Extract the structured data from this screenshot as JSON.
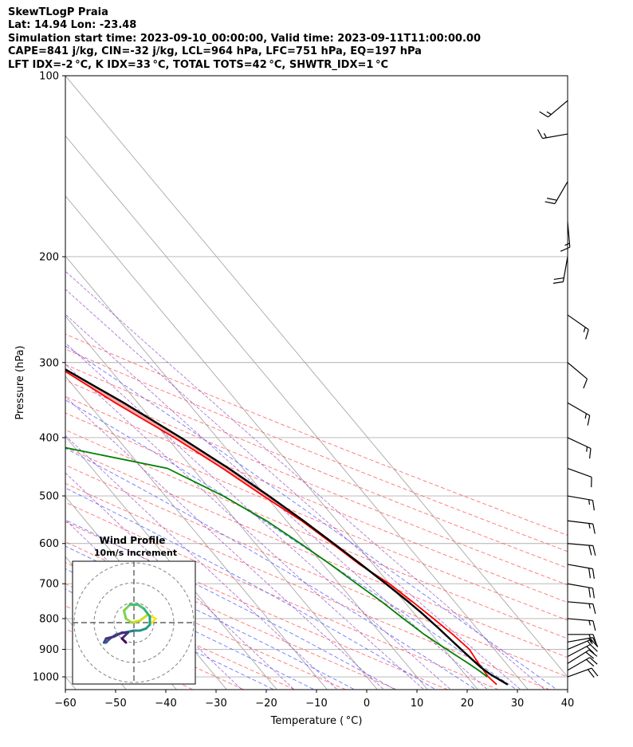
{
  "header": {
    "line1": "SkewTLogP Praia",
    "line2": "Lat: 14.94   Lon: -23.48",
    "line3": "Simulation start time: 2023-09-10_00:00:00, Valid time: 2023-09-11T11:00:00.00",
    "line4": "CAPE=841 j/kg, CIN=-32 j/kg, LCL=964 hPa, LFC=751 hPa, EQ=197 hPa",
    "line5": "LFT IDX=-2 °C, K IDX=33 °C, TOTAL TOTS=42 °C, SHWTR_IDX=1 °C"
  },
  "chart_data": {
    "type": "line",
    "chart_kind": "skew-T log-P",
    "xlabel": "Temperature ( °C)",
    "ylabel": "Pressure (hPa)",
    "xlim": [
      -60,
      40
    ],
    "ylim": [
      1050,
      100
    ],
    "y_scale": "log",
    "x_ticks": [
      -60,
      -50,
      -40,
      -30,
      -20,
      -10,
      0,
      10,
      20,
      30,
      40
    ],
    "y_ticks": [
      100,
      200,
      300,
      400,
      500,
      600,
      700,
      800,
      900,
      1000
    ],
    "skew_deg_per_log10_p": 100,
    "grid": true,
    "series": [
      {
        "key": "temperature",
        "color": "#ff0000",
        "p": [
          1030,
          1000,
          950,
          900,
          850,
          800,
          750,
          700,
          650,
          600,
          550,
          500,
          450,
          400,
          350,
          300,
          270,
          250,
          220,
          200,
          180,
          160,
          140,
          120,
          110,
          100
        ],
        "t": [
          24.6,
          24.2,
          24.5,
          25.0,
          24.2,
          23.0,
          21.6,
          20.0,
          17.3,
          15.3,
          13.0,
          9.5,
          6.0,
          1.5,
          -4.5,
          -10.5,
          -16.0,
          -20.5,
          -28.2,
          -34.0,
          -37.0,
          -44.0,
          -51.3,
          -60.0,
          -64.5,
          -66.0
        ]
      },
      {
        "key": "dewpoint",
        "color": "#008000",
        "p": [
          1000,
          980,
          950,
          900,
          850,
          800,
          750,
          700,
          650,
          600,
          550,
          500,
          450,
          400,
          380,
          340,
          320,
          300,
          280,
          250,
          230,
          210,
          200,
          180,
          160,
          140,
          125,
          110,
          100
        ],
        "t": [
          24.0,
          23.5,
          22.5,
          20.5,
          18.5,
          17.0,
          15.5,
          13.5,
          11.5,
          9.0,
          6.0,
          1.5,
          -5.0,
          -30.0,
          -40.0,
          -41.0,
          -38.0,
          -30.0,
          -35.0,
          -59.0,
          -55.0,
          -51.0,
          -52.0,
          -58.0,
          -56.0,
          -64.5,
          -74.5,
          -76.5,
          -76.5
        ]
      },
      {
        "key": "parcel",
        "color": "#000000",
        "p": [
          1030,
          990,
          964,
          930,
          880,
          830,
          780,
          751,
          700,
          650,
          600,
          550,
          500,
          450,
          400,
          350,
          300,
          270,
          250,
          220,
          197,
          180,
          150,
          120,
          100
        ],
        "t": [
          26.8,
          25.0,
          24.3,
          23.8,
          23.1,
          22.4,
          21.5,
          20.8,
          19.3,
          17.6,
          15.6,
          13.4,
          10.6,
          7.2,
          2.8,
          -2.8,
          -10.1,
          -15.8,
          -20.3,
          -28.0,
          -34.0,
          -39.2,
          -49.8,
          -64.0,
          -76.0
        ]
      }
    ],
    "shading": [
      {
        "name": "CAPE",
        "color": "#f5a7a7",
        "between": [
          "temperature",
          "parcel"
        ],
        "p_range": [
          751,
          197
        ]
      },
      {
        "name": "CIN",
        "color": "#a8c8e0",
        "between": [
          "parcel",
          "temperature"
        ],
        "p_range": [
          197,
          100
        ]
      }
    ],
    "dry_adiabats_theta_c": [
      -40,
      -30,
      -20,
      -10,
      0,
      10,
      20,
      30,
      40,
      50,
      60,
      70,
      80,
      90,
      100,
      110,
      120
    ],
    "moist_adiabats_start_t": [
      -20,
      -12,
      -4,
      4,
      12,
      20,
      28,
      36
    ],
    "mixing_ratio_gkg": [
      0.4,
      1,
      2,
      4,
      7,
      10,
      16,
      24,
      32
    ],
    "wind_barbs": {
      "p": [
        1000,
        975,
        950,
        925,
        900,
        875,
        850,
        800,
        750,
        700,
        650,
        600,
        550,
        500,
        450,
        400,
        350,
        300,
        250,
        200,
        175,
        150,
        125,
        110
      ],
      "speed_kt": [
        20,
        22,
        20,
        18,
        15,
        17,
        18,
        16,
        15,
        18,
        20,
        20,
        17,
        15,
        12,
        15,
        14,
        12,
        17,
        18,
        16,
        22,
        17,
        15
      ],
      "dir_deg": [
        70,
        60,
        58,
        62,
        67,
        80,
        90,
        95,
        95,
        100,
        100,
        95,
        97,
        100,
        110,
        115,
        120,
        130,
        125,
        190,
        175,
        210,
        260,
        230
      ]
    }
  },
  "hodograph": {
    "title": "Wind Profile",
    "subtitle": "10m/s increment",
    "trace": [
      [
        9,
        0
      ],
      [
        11,
        -2
      ],
      [
        7,
        -4
      ],
      [
        3,
        -1
      ],
      [
        -1,
        0
      ],
      [
        -4,
        -2
      ],
      [
        -5,
        -6
      ],
      [
        -2,
        -9
      ],
      [
        2,
        -9
      ],
      [
        5,
        -7
      ],
      [
        8,
        -3
      ],
      [
        8,
        1
      ],
      [
        6,
        3
      ],
      [
        3,
        4
      ],
      [
        0,
        4
      ],
      [
        -5,
        5
      ],
      [
        -9,
        6
      ],
      [
        -12,
        8
      ],
      [
        -14,
        10
      ],
      [
        -15,
        10
      ],
      [
        -14,
        8
      ],
      [
        -10,
        7
      ],
      [
        -6,
        5
      ],
      [
        -3,
        5
      ],
      [
        -6,
        8
      ],
      [
        -4,
        10
      ]
    ],
    "radii": [
      10,
      20,
      30
    ]
  }
}
